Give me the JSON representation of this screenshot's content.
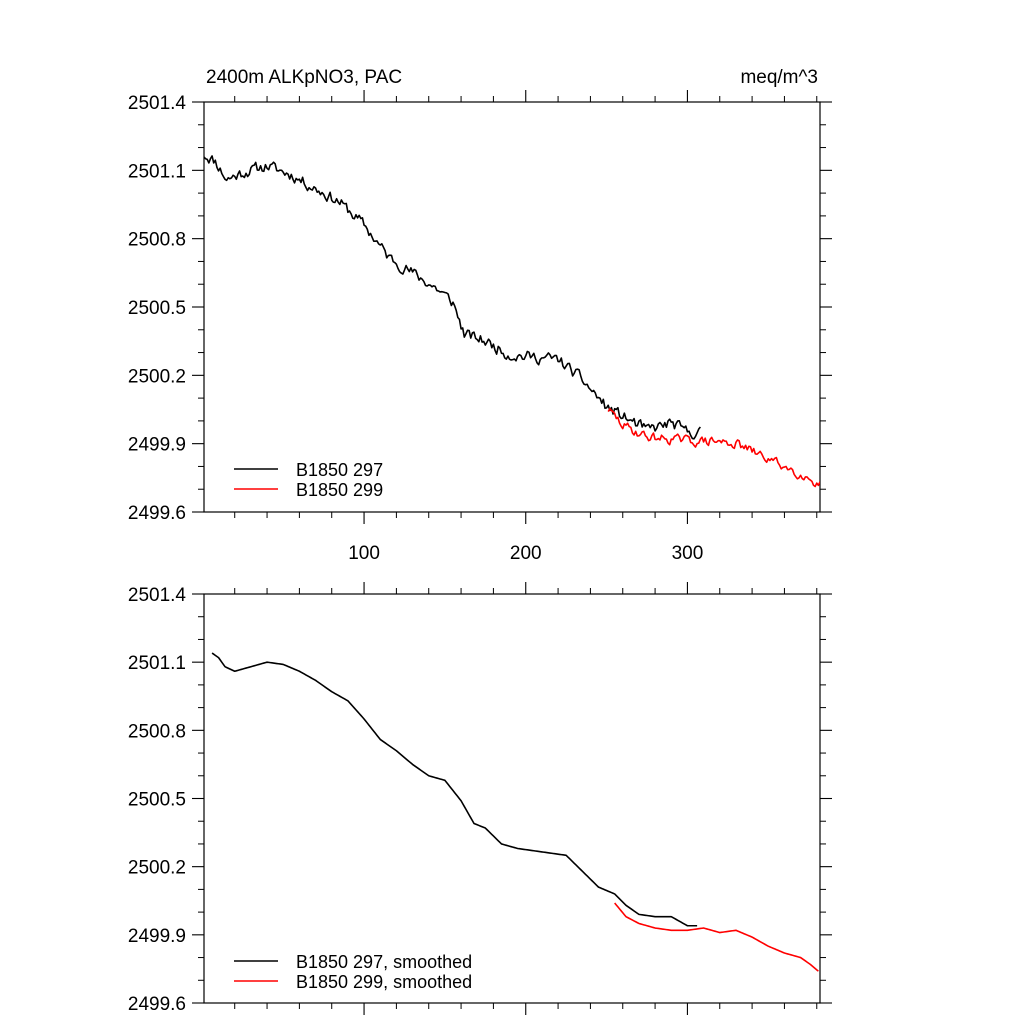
{
  "chart_data": [
    {
      "type": "line",
      "title_left": "2400m ALKpNO3, PAC",
      "title_right": "meq/m^3",
      "xlim": [
        1,
        382
      ],
      "ylim": [
        2499.6,
        2501.4
      ],
      "x_ticks": [
        100,
        200,
        300
      ],
      "x_tick_labels": [
        "100",
        "200",
        "300"
      ],
      "y_ticks": [
        2499.6,
        2499.9,
        2500.2,
        2500.5,
        2500.8,
        2501.1,
        2501.4
      ],
      "y_tick_labels": [
        "2499.6",
        "2499.9",
        "2500.2",
        "2500.5",
        "2500.8",
        "2501.1",
        "2501.4"
      ],
      "legend": [
        "B1850 297",
        "B1850 299"
      ],
      "series": [
        {
          "name": "B1850 297",
          "color": "#000000",
          "anchors": [
            [
              1,
              2501.17
            ],
            [
              8,
              2501.14
            ],
            [
              15,
              2501.06
            ],
            [
              25,
              2501.09
            ],
            [
              40,
              2501.12
            ],
            [
              55,
              2501.08
            ],
            [
              70,
              2501.02
            ],
            [
              85,
              2500.96
            ],
            [
              100,
              2500.86
            ],
            [
              115,
              2500.72
            ],
            [
              130,
              2500.65
            ],
            [
              145,
              2500.58
            ],
            [
              155,
              2500.52
            ],
            [
              162,
              2500.38
            ],
            [
              175,
              2500.35
            ],
            [
              190,
              2500.29
            ],
            [
              205,
              2500.28
            ],
            [
              220,
              2500.27
            ],
            [
              235,
              2500.18
            ],
            [
              250,
              2500.06
            ],
            [
              265,
              2500.0
            ],
            [
              275,
              2499.96
            ],
            [
              290,
              2499.99
            ],
            [
              300,
              2499.95
            ],
            [
              308,
              2499.95
            ]
          ],
          "noise": 0.022,
          "seed": 11
        },
        {
          "name": "B1850 299",
          "color": "#ff0000",
          "anchors": [
            [
              251,
              2500.05
            ],
            [
              260,
              2499.98
            ],
            [
              275,
              2499.93
            ],
            [
              290,
              2499.92
            ],
            [
              305,
              2499.91
            ],
            [
              318,
              2499.91
            ],
            [
              330,
              2499.9
            ],
            [
              345,
              2499.85
            ],
            [
              360,
              2499.8
            ],
            [
              372,
              2499.76
            ],
            [
              382,
              2499.72
            ]
          ],
          "noise": 0.018,
          "seed": 29
        }
      ]
    },
    {
      "type": "line",
      "xlim": [
        1,
        382
      ],
      "ylim": [
        2499.6,
        2501.4
      ],
      "x_ticks": [
        100,
        200,
        300
      ],
      "y_ticks": [
        2499.6,
        2499.9,
        2500.2,
        2500.5,
        2500.8,
        2501.1,
        2501.4
      ],
      "y_tick_labels": [
        "2499.6",
        "2499.9",
        "2500.2",
        "2500.5",
        "2500.8",
        "2501.1",
        "2501.4"
      ],
      "legend": [
        "B1850 297, smoothed",
        "B1850 299, smoothed"
      ],
      "series": [
        {
          "name": "B1850 297, smoothed",
          "color": "#000000",
          "anchors": [
            [
              6,
              2501.14
            ],
            [
              10,
              2501.12
            ],
            [
              14,
              2501.08
            ],
            [
              20,
              2501.06
            ],
            [
              30,
              2501.08
            ],
            [
              40,
              2501.1
            ],
            [
              50,
              2501.09
            ],
            [
              60,
              2501.06
            ],
            [
              70,
              2501.02
            ],
            [
              80,
              2500.97
            ],
            [
              90,
              2500.93
            ],
            [
              100,
              2500.85
            ],
            [
              110,
              2500.76
            ],
            [
              120,
              2500.71
            ],
            [
              130,
              2500.65
            ],
            [
              140,
              2500.6
            ],
            [
              150,
              2500.58
            ],
            [
              160,
              2500.49
            ],
            [
              168,
              2500.39
            ],
            [
              175,
              2500.37
            ],
            [
              185,
              2500.3
            ],
            [
              195,
              2500.28
            ],
            [
              205,
              2500.27
            ],
            [
              215,
              2500.26
            ],
            [
              225,
              2500.25
            ],
            [
              235,
              2500.18
            ],
            [
              245,
              2500.11
            ],
            [
              255,
              2500.08
            ],
            [
              262,
              2500.03
            ],
            [
              270,
              2499.99
            ],
            [
              280,
              2499.98
            ],
            [
              290,
              2499.98
            ],
            [
              300,
              2499.94
            ],
            [
              306,
              2499.94
            ]
          ],
          "noise": 0,
          "seed": 0
        },
        {
          "name": "B1850 299, smoothed",
          "color": "#ff0000",
          "anchors": [
            [
              255,
              2500.04
            ],
            [
              262,
              2499.98
            ],
            [
              270,
              2499.95
            ],
            [
              280,
              2499.93
            ],
            [
              290,
              2499.92
            ],
            [
              300,
              2499.92
            ],
            [
              310,
              2499.93
            ],
            [
              320,
              2499.91
            ],
            [
              330,
              2499.92
            ],
            [
              340,
              2499.89
            ],
            [
              350,
              2499.85
            ],
            [
              360,
              2499.82
            ],
            [
              370,
              2499.8
            ],
            [
              376,
              2499.77
            ],
            [
              381,
              2499.74
            ]
          ],
          "noise": 0,
          "seed": 0
        }
      ]
    }
  ]
}
